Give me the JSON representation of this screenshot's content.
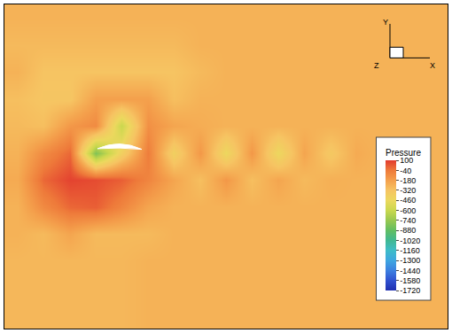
{
  "chart_data": {
    "type": "heatmap",
    "x": [
      0,
      1,
      2,
      3,
      4,
      5,
      6,
      7,
      8,
      9,
      10,
      11,
      12,
      13,
      14,
      15,
      16
    ],
    "y": [
      0,
      1,
      2,
      3,
      4,
      5,
      6,
      7,
      8,
      9,
      10,
      11
    ],
    "xlim": [
      -0.5,
      16.5
    ],
    "ylim": [
      11.5,
      -0.5
    ],
    "tick_labels": false,
    "cells": [
      [
        -250,
        -250,
        -250,
        -250,
        -250,
        -250,
        -250,
        -250,
        -250,
        -250,
        -250,
        -250,
        -250,
        -250,
        -250,
        -250,
        -250
      ],
      [
        -280,
        -280,
        -280,
        -280,
        -280,
        -280,
        -280,
        -250,
        -250,
        -250,
        -250,
        -250,
        -250,
        -250,
        -250,
        -250,
        -250
      ],
      [
        -250,
        -320,
        -320,
        -320,
        -320,
        -320,
        -320,
        -280,
        -250,
        -250,
        -250,
        -250,
        -250,
        -250,
        -250,
        -250,
        -250
      ],
      [
        -300,
        -330,
        -330,
        -180,
        -180,
        -180,
        -300,
        -250,
        -250,
        -250,
        -250,
        -250,
        -250,
        -250,
        -250,
        -250,
        -250
      ],
      [
        -280,
        -300,
        -150,
        -100,
        -600,
        -120,
        -200,
        -230,
        -250,
        -250,
        -250,
        -250,
        -250,
        -250,
        -250,
        -250,
        -250
      ],
      [
        -250,
        -100,
        0,
        -800,
        -400,
        -50,
        -400,
        -150,
        -450,
        -150,
        -450,
        -200,
        -350,
        -220,
        -260,
        -240,
        -250
      ],
      [
        -220,
        0,
        80,
        60,
        20,
        -80,
        -200,
        -300,
        -150,
        -300,
        -200,
        -280,
        -240,
        -250,
        -250,
        -250,
        -250
      ],
      [
        -250,
        -100,
        0,
        20,
        -80,
        -200,
        -250,
        -250,
        -250,
        -250,
        -250,
        -250,
        -250,
        -250,
        -250,
        -250,
        -250
      ],
      [
        -250,
        -280,
        -200,
        -280,
        -280,
        -280,
        -250,
        -250,
        -250,
        -250,
        -250,
        -250,
        -250,
        -250,
        -250,
        -250,
        -250
      ],
      [
        -270,
        -270,
        -270,
        -270,
        -270,
        -250,
        -250,
        -250,
        -250,
        -250,
        -250,
        -250,
        -250,
        -250,
        -250,
        -250,
        -250
      ],
      [
        -270,
        -270,
        -270,
        -270,
        -270,
        -250,
        -250,
        -250,
        -250,
        -250,
        -250,
        -250,
        -250,
        -250,
        -250,
        -250,
        -250
      ],
      [
        -270,
        -270,
        -270,
        -270,
        -270,
        -250,
        -250,
        -250,
        -250,
        -250,
        -250,
        -250,
        -250,
        -250,
        -250,
        -250,
        -250
      ]
    ],
    "colorbar": {
      "title": "Pressure",
      "range": [
        -1720,
        100
      ],
      "ticks": [
        100,
        -40,
        -180,
        -320,
        -460,
        -600,
        -740,
        -880,
        -1020,
        -1160,
        -1300,
        -1440,
        -1580,
        -1720
      ]
    },
    "annotations": [
      "Y",
      "Z",
      "X"
    ]
  }
}
